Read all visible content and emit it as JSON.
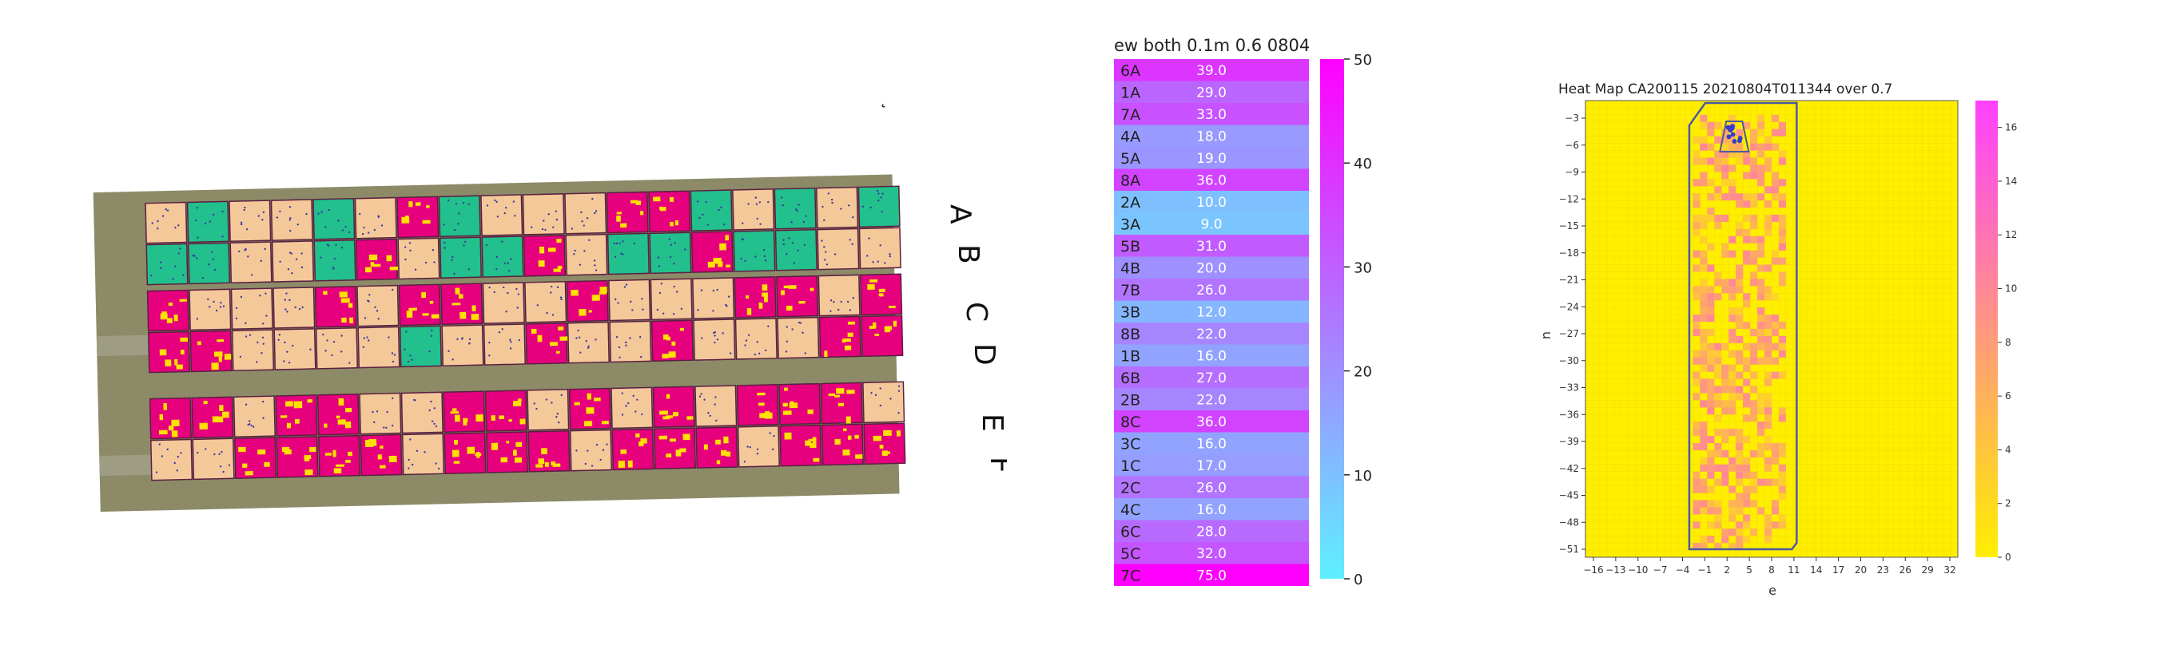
{
  "field_map": {
    "row_labels": [
      "A",
      "B",
      "C",
      "D",
      "E",
      "F"
    ],
    "stray_mark": "˛"
  },
  "chart_data": [
    {
      "type": "heatmap",
      "title": "ew both 0.1m 0.6 0804",
      "categories": [
        "6A",
        "1A",
        "7A",
        "4A",
        "5A",
        "8A",
        "2A",
        "3A",
        "5B",
        "4B",
        "7B",
        "3B",
        "8B",
        "1B",
        "6B",
        "2B",
        "8C",
        "3C",
        "1C",
        "2C",
        "4C",
        "6C",
        "5C",
        "7C"
      ],
      "values": [
        39.0,
        29.0,
        33.0,
        18.0,
        19.0,
        36.0,
        10.0,
        9.0,
        31.0,
        20.0,
        26.0,
        12.0,
        22.0,
        16.0,
        27.0,
        22.0,
        36.0,
        16.0,
        17.0,
        26.0,
        16.0,
        28.0,
        32.0,
        75.0
      ],
      "colorbar": {
        "min": 0,
        "max": 50,
        "ticks": [
          0,
          10,
          20,
          30,
          40,
          50
        ]
      },
      "colors": {
        "low": "#5ef0ff",
        "high": "#ff00ff"
      }
    },
    {
      "type": "heatmap",
      "title": "Heat Map CA200115 20210804T011344 over 0.7",
      "xlabel": "e",
      "ylabel": "n",
      "x_ticks": [
        "−16",
        "−13",
        "−10",
        "−7",
        "−4",
        "−1",
        "2",
        "5",
        "8",
        "11",
        "14",
        "17",
        "20",
        "23",
        "26",
        "29",
        "32"
      ],
      "y_ticks": [
        "−3",
        "−6",
        "−9",
        "−12",
        "−15",
        "−18",
        "−21",
        "−24",
        "−27",
        "−30",
        "−33",
        "−36",
        "−39",
        "−42",
        "−45",
        "−48",
        "−51"
      ],
      "colorbar": {
        "min": 0,
        "max": 17,
        "ticks": [
          0,
          2,
          4,
          6,
          8,
          10,
          12,
          14,
          16
        ]
      },
      "colors": {
        "low": "#ffee00",
        "high": "#ff40ff",
        "outline": "#4a5aa0"
      }
    }
  ]
}
